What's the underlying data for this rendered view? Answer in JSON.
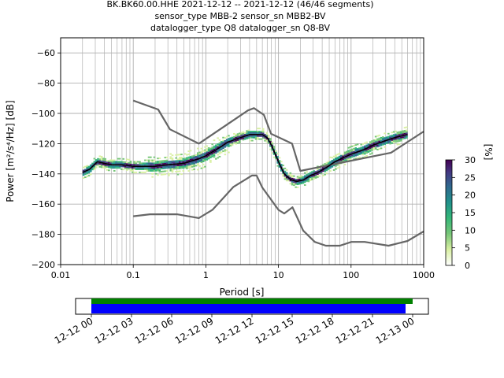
{
  "chart_data": {
    "type": "ppsd",
    "title_lines": [
      "BK.BK60.00.HHE   2021-12-12 -- 2021-12-12  (46/46 segments)",
      "sensor_type MBB-2 sensor_sn MBB2-BV",
      "datalogger_type Q8 datalogger_sn Q8-BV"
    ],
    "xlabel": "Period [s]",
    "ylabel": "Power [m²/s⁴/Hz] [dB]",
    "x_scale": "log",
    "xlim": [
      0.01,
      1000
    ],
    "ylim": [
      -200,
      -50
    ],
    "x_ticks": [
      0.01,
      0.1,
      1,
      10,
      100,
      1000
    ],
    "x_tick_labels": [
      "0.01",
      "0.1",
      "1",
      "10",
      "100",
      "1000"
    ],
    "y_ticks": [
      -200,
      -180,
      -160,
      -140,
      -120,
      -100,
      -80,
      -60
    ],
    "y_tick_labels": [
      "−200",
      "−180",
      "−160",
      "−140",
      "−120",
      "−100",
      "−80",
      "−60"
    ],
    "grid": true,
    "colorbar": {
      "label": "[%]",
      "range": [
        0,
        30
      ],
      "ticks": [
        0,
        5,
        10,
        15,
        20,
        25,
        30
      ],
      "tick_labels": [
        "0",
        "5",
        "10",
        "15",
        "20",
        "25",
        "30"
      ],
      "colors": [
        "#ffffff",
        "#d9f0a3",
        "#78c679",
        "#35b779",
        "#21918c",
        "#31688e",
        "#443983",
        "#440154"
      ]
    },
    "series": [
      {
        "role": "high-noise-model",
        "color": "#666666",
        "x": [
          0.1,
          0.22,
          0.32,
          0.8,
          3.8,
          4.6,
          6.3,
          7.9,
          15.4,
          20,
          354.8,
          1000
        ],
        "y": [
          -91.5,
          -97.4,
          -110.5,
          -120.0,
          -98.0,
          -96.5,
          -101.0,
          -113.5,
          -120.0,
          -138.0,
          -126.0,
          -112.0
        ]
      },
      {
        "role": "low-noise-model",
        "color": "#666666",
        "x": [
          0.1,
          0.17,
          0.4,
          0.8,
          1.24,
          2.4,
          4.3,
          5.0,
          6.0,
          10.0,
          12.0,
          15.6,
          21.9,
          31.6,
          45.0,
          70.0,
          101.0,
          154.0,
          328.0,
          600.0,
          1000.0
        ],
        "y": [
          -168.0,
          -166.7,
          -166.7,
          -169.2,
          -163.7,
          -148.6,
          -141.1,
          -141.1,
          -149.0,
          -163.8,
          -166.2,
          -162.1,
          -177.5,
          -185.0,
          -187.5,
          -187.5,
          -185.0,
          -185.0,
          -187.5,
          -184.4,
          -178.0
        ]
      },
      {
        "role": "mode",
        "color": "#000000",
        "x": [
          0.02,
          0.025,
          0.032,
          0.04,
          0.05,
          0.07,
          0.1,
          0.15,
          0.2,
          0.3,
          0.5,
          0.8,
          1.0,
          1.5,
          2,
          3,
          4,
          5,
          6,
          7,
          8,
          10,
          12,
          15,
          18,
          22,
          28,
          35,
          45,
          60,
          80,
          100,
          150,
          200,
          300,
          400,
          600
        ],
        "y": [
          -139,
          -137,
          -132,
          -133,
          -134,
          -134,
          -135,
          -135,
          -135,
          -134,
          -133,
          -130,
          -128,
          -123,
          -119,
          -116,
          -114,
          -114,
          -114,
          -116,
          -121,
          -132,
          -140,
          -144,
          -145,
          -144,
          -141,
          -139,
          -136,
          -132,
          -129,
          -127,
          -124,
          -121,
          -118,
          -116,
          -114
        ]
      }
    ],
    "time_panel": {
      "tick_labels": [
        "12-12 00",
        "12-12 03",
        "12-12 06",
        "12-12 09",
        "12-12 12",
        "12-12 15",
        "12-12 18",
        "12-12 21",
        "12-13 00"
      ],
      "coverage_bar_color": "#008000",
      "segment_bar_color": "#0000ff"
    }
  }
}
